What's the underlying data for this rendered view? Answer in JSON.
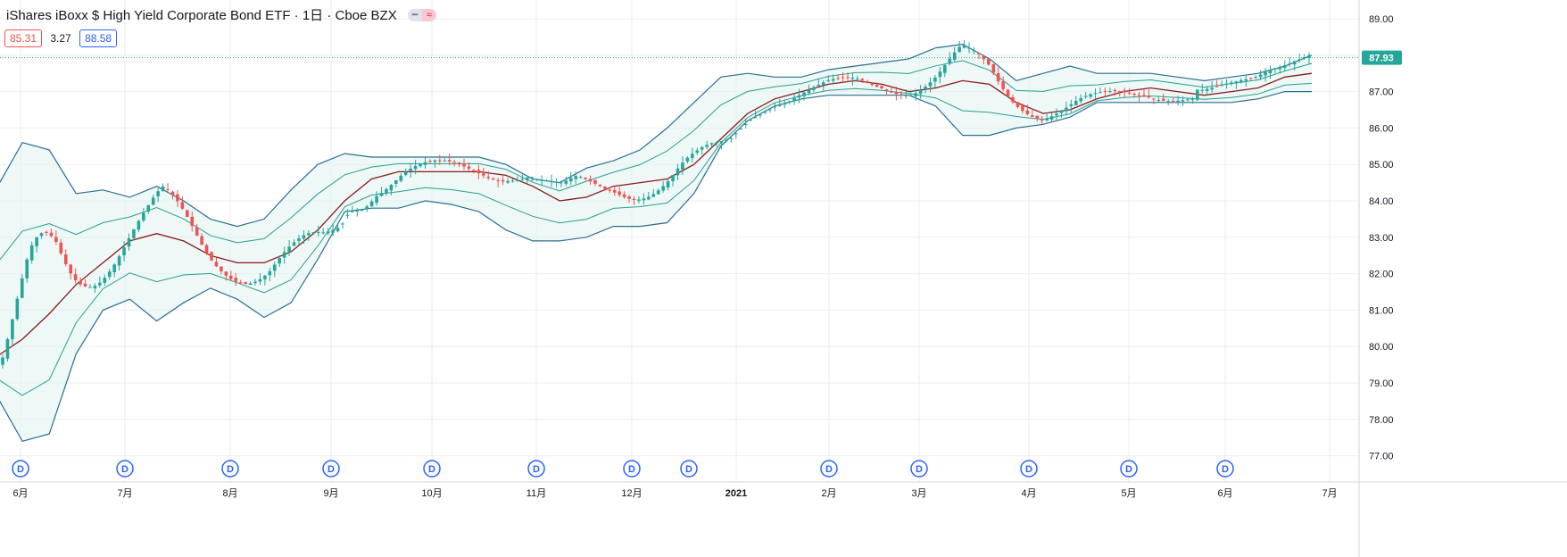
{
  "header": {
    "title": "iShares iBoxx $ High Yield Corporate Bond ETF · 1日 · Cboe BZX",
    "indicator_pill_left": "━",
    "indicator_pill_right": "≈",
    "values": [
      "85.31",
      "3.27",
      "88.58"
    ]
  },
  "colors": {
    "up": "#26a69a",
    "down": "#ef5350",
    "band": "#2a6f8f",
    "inner": "#2a9d8f",
    "basis": "#8b1a1a",
    "fill": "#e0f2f1",
    "grid": "#eceef2",
    "dividend": "#2962ff"
  },
  "chart_data": {
    "type": "candlestick",
    "title": "iShares iBoxx $ High Yield Corporate Bond ETF · 1日 · Cboe BZX",
    "ylim": [
      76.5,
      89.5
    ],
    "y_ticks": [
      "77.00",
      "78.00",
      "79.00",
      "80.00",
      "81.00",
      "82.00",
      "83.00",
      "84.00",
      "85.00",
      "86.00",
      "87.00",
      "88.00",
      "89.00"
    ],
    "x_ticks": [
      "6月",
      "7月",
      "8月",
      "9月",
      "10月",
      "11月",
      "12月",
      "2021",
      "2月",
      "3月",
      "4月",
      "5月",
      "6月",
      "7月"
    ],
    "last_price": "87.93",
    "dividend_label": "D",
    "dividend_markers_count": 14,
    "series": [
      {
        "name": "Bollinger basis",
        "values": [
          79.7,
          80.2,
          80.9,
          81.7,
          82.3,
          82.9,
          83.1,
          82.9,
          82.5,
          82.3,
          82.3,
          82.6,
          83.2,
          84.0,
          84.6,
          84.8,
          84.8,
          84.8,
          84.8,
          84.7,
          84.4,
          84.0,
          84.1,
          84.4,
          84.5,
          84.6,
          85.0,
          85.7,
          86.4,
          86.8,
          87.0,
          87.2,
          87.3,
          87.2,
          87.0,
          87.1,
          87.3,
          87.2,
          86.7,
          86.4,
          86.5,
          86.8,
          87.0,
          87.1,
          87.0,
          86.9,
          87.0,
          87.1,
          87.4,
          87.5
        ]
      },
      {
        "name": "Bollinger upper",
        "values": [
          84.3,
          85.6,
          85.4,
          84.2,
          84.3,
          84.1,
          84.4,
          84.0,
          83.5,
          83.3,
          83.5,
          84.3,
          85.0,
          85.3,
          85.2,
          85.2,
          85.2,
          85.2,
          85.2,
          85.0,
          84.6,
          84.5,
          84.9,
          85.1,
          85.4,
          86.0,
          86.7,
          87.4,
          87.5,
          87.4,
          87.4,
          87.6,
          87.7,
          87.8,
          87.9,
          88.2,
          88.3,
          87.9,
          87.3,
          87.5,
          87.7,
          87.5,
          87.5,
          87.5,
          87.4,
          87.3,
          87.4,
          87.5,
          87.7,
          88.0
        ]
      },
      {
        "name": "Bollinger lower",
        "values": [
          78.7,
          77.4,
          77.6,
          79.8,
          81.0,
          81.3,
          80.7,
          81.2,
          81.6,
          81.3,
          80.8,
          81.2,
          82.4,
          83.7,
          83.8,
          83.8,
          84.0,
          83.9,
          83.7,
          83.2,
          82.9,
          82.9,
          83.0,
          83.3,
          83.3,
          83.4,
          84.2,
          85.5,
          86.2,
          86.6,
          86.8,
          86.9,
          86.9,
          86.9,
          86.9,
          86.6,
          85.8,
          85.8,
          86.0,
          86.1,
          86.3,
          86.7,
          86.7,
          86.7,
          86.7,
          86.7,
          86.7,
          86.8,
          87.0,
          87.0
        ]
      }
    ]
  }
}
